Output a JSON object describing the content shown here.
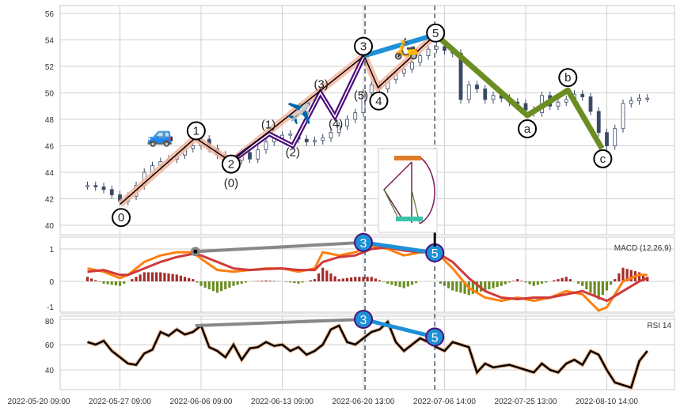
{
  "chart_data": {
    "type": "line",
    "title": "",
    "x_ticks": {
      "positions": [
        0,
        10,
        20,
        30,
        40,
        50,
        60,
        70
      ],
      "labels": [
        "2022-05-20 09:00",
        "2022-05-27 09:00",
        "2022-06-06 09:00",
        "2022-06-13 09:00",
        "2022-06-20 13:00",
        "2022-07-06 14:00",
        "2022-07-25 13:00",
        "2022-08-10 14:00"
      ]
    },
    "price": {
      "ylim": [
        39,
        56.6
      ],
      "yticks": [
        40,
        42,
        44,
        46,
        48,
        50,
        52,
        54,
        56
      ],
      "x": [
        6,
        7,
        8,
        9,
        10,
        11,
        12,
        13,
        14,
        15,
        16,
        17,
        18,
        19,
        20,
        21,
        22,
        23,
        24,
        25,
        26,
        27,
        28,
        29,
        30,
        31,
        32,
        33,
        34,
        35,
        36,
        37,
        38,
        39,
        40,
        41,
        42,
        43,
        44,
        45,
        46,
        47,
        48,
        49,
        50,
        51,
        52,
        53,
        54,
        55,
        56,
        57,
        58,
        59,
        60,
        61,
        62,
        63,
        64,
        65,
        66,
        67,
        68,
        69,
        70,
        71,
        72,
        73,
        74,
        75
      ],
      "close": [
        43.0,
        42.9,
        42.7,
        42.3,
        41.8,
        42.2,
        43.0,
        44.0,
        44.5,
        44.8,
        45.0,
        45.3,
        45.8,
        46.0,
        46.5,
        45.8,
        45.3,
        45.0,
        44.9,
        45.5,
        45.0,
        45.7,
        46.3,
        46.6,
        46.8,
        46.9,
        46.5,
        46.3,
        46.4,
        46.6,
        47.0,
        47.5,
        48.0,
        48.5,
        50.0,
        50.6,
        50.3,
        51.0,
        51.5,
        51.8,
        52.3,
        52.8,
        53.3,
        53.5,
        53.2,
        53.0,
        49.5,
        50.6,
        50.3,
        49.5,
        49.8,
        49.6,
        49.3,
        49.2,
        48.7,
        48.5,
        49.8,
        49.0,
        49.3,
        49.5,
        49.9,
        49.7,
        48.6,
        47.0,
        46.0,
        47.3,
        49.2,
        49.4,
        49.6,
        49.6
      ]
    },
    "waves": {
      "primary": [
        {
          "label": "0",
          "x": 10.05,
          "y": 41.6
        },
        {
          "label": "1",
          "x": 19.3,
          "y": 46.6
        },
        {
          "label": "2",
          "x": 23.7,
          "y": 44.8
        },
        {
          "label": "3",
          "x": 40.1,
          "y": 52.8
        },
        {
          "label": "4",
          "x": 41.8,
          "y": 50.4
        },
        {
          "label": "5",
          "x": 48.9,
          "y": 54.4
        }
      ],
      "sub": [
        {
          "label": "(0)",
          "x": 23.7,
          "y": 44.8
        },
        {
          "label": "(1)",
          "x": 28.4,
          "y": 46.9
        },
        {
          "label": "(2)",
          "x": 31.3,
          "y": 46.0
        },
        {
          "label": "(3)",
          "x": 34.7,
          "y": 50.0
        },
        {
          "label": "(4)",
          "x": 36.5,
          "y": 48.2
        },
        {
          "label": "(5)",
          "x": 40.1,
          "y": 52.8
        }
      ],
      "correction": [
        {
          "label": "5",
          "x": 48.9,
          "y": 54.4
        },
        {
          "label": "a",
          "x": 60.2,
          "y": 48.3
        },
        {
          "label": "b",
          "x": 65.2,
          "y": 50.2
        },
        {
          "label": "c",
          "x": 69.4,
          "y": 45.8
        }
      ]
    },
    "macd": {
      "label": "MACD (12,26,9)",
      "ylim": [
        -1,
        1.3
      ],
      "yticks": [
        -1,
        0,
        1
      ],
      "x": [
        6,
        8,
        10,
        11,
        13,
        15,
        17,
        19,
        20,
        22,
        24,
        26,
        28,
        30,
        32,
        34,
        35,
        37,
        39,
        41,
        43,
        45,
        47,
        49,
        51,
        53,
        55,
        57,
        59,
        61,
        63,
        65,
        67,
        69,
        70,
        72,
        74,
        75
      ],
      "macd": [
        0.4,
        0.3,
        0.1,
        0.2,
        0.6,
        0.8,
        0.9,
        0.9,
        0.7,
        0.35,
        0.3,
        0.35,
        0.4,
        0.4,
        0.3,
        0.4,
        0.9,
        0.8,
        0.9,
        1.1,
        1.0,
        0.8,
        0.9,
        0.9,
        0.4,
        -0.2,
        -0.5,
        -0.6,
        -0.5,
        -0.6,
        -0.5,
        -0.3,
        -0.4,
        -0.9,
        -0.8,
        0.0,
        0.2,
        0.2
      ],
      "signal": [
        0.3,
        0.35,
        0.2,
        0.2,
        0.4,
        0.6,
        0.75,
        0.85,
        0.8,
        0.6,
        0.4,
        0.35,
        0.38,
        0.4,
        0.35,
        0.35,
        0.6,
        0.75,
        0.8,
        1.0,
        1.05,
        0.95,
        0.9,
        0.9,
        0.6,
        0.1,
        -0.3,
        -0.5,
        -0.55,
        -0.5,
        -0.5,
        -0.4,
        -0.3,
        -0.5,
        -0.6,
        -0.3,
        0.0,
        0.1
      ]
    },
    "rsi": {
      "label": "RSI 14",
      "ylim": [
        22,
        82
      ],
      "yticks": [
        40,
        60,
        80
      ],
      "x": [
        6,
        7,
        8,
        9,
        10,
        11,
        12,
        13,
        14,
        15,
        16,
        17,
        18,
        19,
        20,
        21,
        22,
        23,
        24,
        25,
        26,
        27,
        28,
        29,
        30,
        31,
        32,
        33,
        34,
        35,
        36,
        37,
        38,
        39,
        40,
        41,
        42,
        43,
        44,
        45,
        46,
        47,
        48,
        49,
        50,
        51,
        52,
        53,
        54,
        55,
        56,
        57,
        58,
        59,
        60,
        61,
        62,
        63,
        64,
        65,
        66,
        67,
        68,
        69,
        70,
        71,
        72,
        73,
        74,
        75
      ],
      "values": [
        62,
        60,
        63,
        55,
        50,
        45,
        44,
        53,
        56,
        70,
        67,
        72,
        68,
        70,
        75,
        58,
        55,
        50,
        60,
        48,
        57,
        58,
        62,
        59,
        60,
        55,
        58,
        52,
        55,
        60,
        72,
        75,
        62,
        60,
        65,
        70,
        72,
        78,
        62,
        55,
        60,
        65,
        62,
        58,
        55,
        62,
        60,
        58,
        38,
        45,
        42,
        43,
        44,
        42,
        40,
        38,
        45,
        40,
        38,
        45,
        48,
        44,
        55,
        52,
        40,
        30,
        28,
        26,
        47,
        55
      ]
    },
    "divergence": {
      "macd": [
        {
          "label": "3",
          "x": 40,
          "y": 1.2
        },
        {
          "label": "5",
          "x": 48.8,
          "y": 0.88
        }
      ],
      "macd_origin": {
        "x": 19.3,
        "y": 0.92
      },
      "rsi": [
        {
          "label": "3",
          "x": 40,
          "y": 80
        },
        {
          "label": "5",
          "x": 48.8,
          "y": 66
        }
      ],
      "rsi_origin": {
        "x": 19.3,
        "y": 75
      }
    },
    "markers": {
      "dashed_x": [
        40.2,
        48.8
      ]
    }
  },
  "colors": {
    "impulse_band": "#f4b6a0",
    "sub": "#4b0f7a",
    "correction": "#6b8e23",
    "blue": "#1e90d6",
    "macd": "#ff7f0e",
    "signal": "#d03a3a",
    "hist_pos": "#a52a2a",
    "hist_neg": "#6b8e23"
  },
  "icons": [
    "car-emoji",
    "airplane-emoji",
    "scooter-emoji",
    "rollercoaster-inset"
  ]
}
